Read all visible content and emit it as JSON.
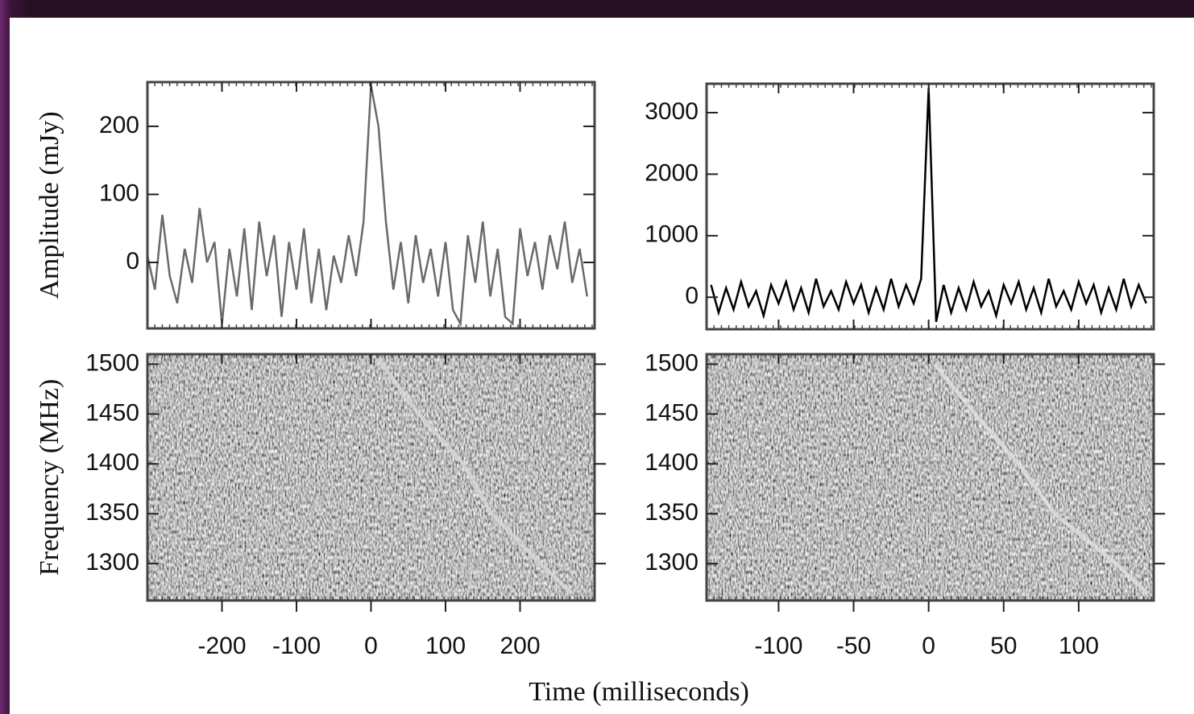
{
  "xlabel": "Time (milliseconds)",
  "chart_data": [
    {
      "type": "line",
      "ylabel": "Amplitude (mJy)",
      "x": [
        -300,
        -290,
        -280,
        -270,
        -260,
        -250,
        -240,
        -230,
        -220,
        -210,
        -200,
        -190,
        -180,
        -170,
        -160,
        -150,
        -140,
        -130,
        -120,
        -110,
        -100,
        -90,
        -80,
        -70,
        -60,
        -50,
        -40,
        -30,
        -20,
        -10,
        0,
        10,
        20,
        30,
        40,
        50,
        60,
        70,
        80,
        90,
        100,
        110,
        120,
        130,
        140,
        150,
        160,
        170,
        180,
        190,
        200,
        210,
        220,
        230,
        240,
        250,
        260,
        270,
        280,
        290
      ],
      "series": [
        {
          "color": "#6a6a6a",
          "values": [
            10,
            -40,
            70,
            -20,
            -60,
            20,
            -30,
            80,
            0,
            30,
            -90,
            20,
            -50,
            50,
            -70,
            60,
            -20,
            40,
            -80,
            30,
            -40,
            50,
            -60,
            20,
            -70,
            10,
            -30,
            40,
            -20,
            60,
            260,
            200,
            60,
            -40,
            30,
            -60,
            40,
            -30,
            20,
            -50,
            30,
            -70,
            -90,
            40,
            -30,
            60,
            -50,
            20,
            -80,
            -90,
            50,
            -20,
            30,
            -40,
            40,
            -10,
            60,
            -30,
            20,
            -50
          ]
        }
      ],
      "xlim": [
        -300,
        300
      ],
      "ylim": [
        -97,
        265
      ],
      "xticks": [
        -200,
        -100,
        0,
        100,
        200
      ],
      "yticks": [
        0,
        100,
        200
      ]
    },
    {
      "type": "line",
      "x": [
        -145,
        -140,
        -135,
        -130,
        -125,
        -120,
        -115,
        -110,
        -105,
        -100,
        -95,
        -90,
        -85,
        -80,
        -75,
        -70,
        -65,
        -60,
        -55,
        -50,
        -45,
        -40,
        -35,
        -30,
        -25,
        -20,
        -15,
        -10,
        -5,
        0,
        5,
        10,
        15,
        20,
        25,
        30,
        35,
        40,
        45,
        50,
        55,
        60,
        65,
        70,
        75,
        80,
        85,
        90,
        95,
        100,
        105,
        110,
        115,
        120,
        125,
        130,
        135,
        140,
        145
      ],
      "series": [
        {
          "color": "#000000",
          "values": [
            200,
            -250,
            150,
            -200,
            250,
            -150,
            100,
            -300,
            200,
            -100,
            250,
            -200,
            150,
            -250,
            300,
            -150,
            100,
            -200,
            250,
            -100,
            200,
            -250,
            150,
            -200,
            300,
            -150,
            200,
            -100,
            300,
            3400,
            -400,
            200,
            -250,
            150,
            -200,
            250,
            -150,
            100,
            -300,
            200,
            -100,
            250,
            -200,
            150,
            -250,
            300,
            -150,
            100,
            -200,
            250,
            -100,
            200,
            -250,
            150,
            -200,
            300,
            -150,
            200,
            -100
          ]
        }
      ],
      "xlim": [
        -148,
        150
      ],
      "ylim": [
        -520,
        3470
      ],
      "xticks": [
        -100,
        -50,
        0,
        50,
        100
      ],
      "yticks": [
        0,
        1000,
        2000,
        3000
      ]
    },
    {
      "type": "spectrogram",
      "ylabel": "Frequency (MHz)",
      "x": [
        10,
        64,
        124,
        162,
        227,
        270
      ],
      "series": [
        {
          "color": "#d8d8d8",
          "values": [
            1505,
            1450,
            1400,
            1350,
            1300,
            1270
          ]
        }
      ],
      "xlim": [
        -300,
        300
      ],
      "ylim": [
        1263,
        1510
      ],
      "xticks": [
        -200,
        -100,
        0,
        100,
        200
      ],
      "yticks": [
        1300,
        1350,
        1400,
        1450,
        1500
      ]
    },
    {
      "type": "spectrogram",
      "x": [
        4,
        31,
        60,
        84,
        125,
        146
      ],
      "series": [
        {
          "color": "#e0e0e0",
          "values": [
            1500,
            1450,
            1400,
            1350,
            1300,
            1270
          ]
        }
      ],
      "xlim": [
        -148,
        150
      ],
      "ylim": [
        1263,
        1510
      ],
      "xticks": [
        -100,
        -50,
        0,
        50,
        100
      ],
      "yticks": [
        1300,
        1350,
        1400,
        1450,
        1500
      ]
    }
  ]
}
